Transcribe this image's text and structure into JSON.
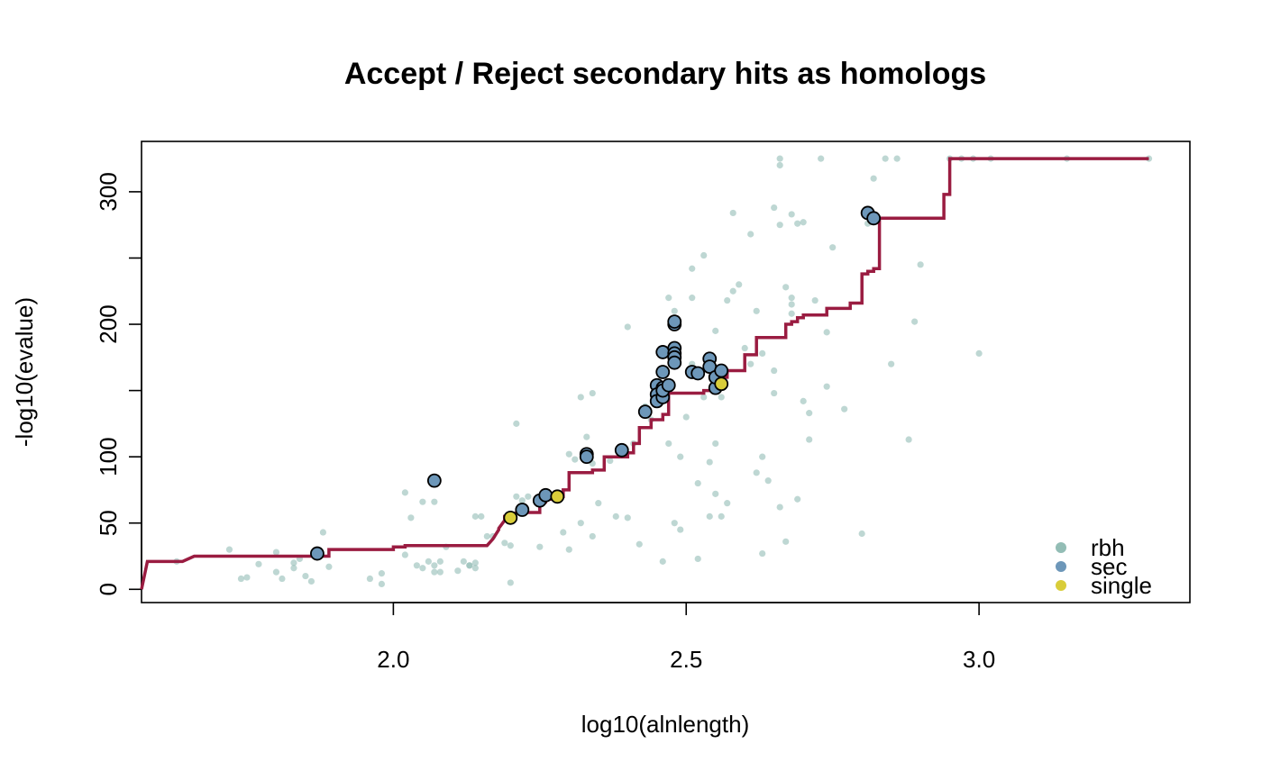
{
  "chart_data": {
    "type": "scatter",
    "title": "Accept / Reject secondary hits as homologs",
    "xlabel": "log10(alnlength)",
    "ylabel": "-log10(evalue)",
    "xlim": [
      1.57,
      3.36
    ],
    "ylim": [
      -10,
      338
    ],
    "xticks": [
      2.0,
      2.5,
      3.0
    ],
    "xtick_labels": [
      "2.0",
      "2.5",
      "3.0"
    ],
    "yticks": [
      0,
      50,
      100,
      150,
      200,
      250,
      300
    ],
    "ytick_labels": [
      "0",
      "50",
      "100",
      "",
      "200",
      "",
      "300"
    ],
    "grid": false,
    "legend_position": "bottom-right",
    "colors": {
      "rbh": "#93bdb5",
      "sec": "#6d97b9",
      "single": "#d9cd3a",
      "threshold": "#9a1c41"
    },
    "series": [
      {
        "name": "rbh",
        "points": [
          [
            1.63,
            21
          ],
          [
            1.72,
            30
          ],
          [
            1.74,
            8
          ],
          [
            1.75,
            9
          ],
          [
            1.77,
            19
          ],
          [
            1.8,
            28
          ],
          [
            1.8,
            13
          ],
          [
            1.81,
            8
          ],
          [
            1.83,
            16
          ],
          [
            1.83,
            20
          ],
          [
            1.84,
            23
          ],
          [
            1.85,
            10
          ],
          [
            1.86,
            6
          ],
          [
            1.88,
            43
          ],
          [
            1.89,
            17
          ],
          [
            1.96,
            8
          ],
          [
            1.98,
            12
          ],
          [
            1.98,
            4
          ],
          [
            2.02,
            26
          ],
          [
            2.02,
            73
          ],
          [
            2.03,
            54
          ],
          [
            2.04,
            18
          ],
          [
            2.05,
            66
          ],
          [
            2.05,
            16
          ],
          [
            2.06,
            21
          ],
          [
            2.07,
            18
          ],
          [
            2.07,
            13
          ],
          [
            2.08,
            21
          ],
          [
            2.08,
            13
          ],
          [
            2.07,
            66
          ],
          [
            2.09,
            32
          ],
          [
            2.11,
            14
          ],
          [
            2.12,
            21
          ],
          [
            2.13,
            18
          ],
          [
            2.13,
            18
          ],
          [
            2.14,
            16
          ],
          [
            2.14,
            55
          ],
          [
            2.14,
            20
          ],
          [
            2.15,
            55
          ],
          [
            2.16,
            40
          ],
          [
            2.17,
            40
          ],
          [
            2.19,
            35
          ],
          [
            2.2,
            33
          ],
          [
            2.21,
            70
          ],
          [
            2.2,
            5
          ],
          [
            2.21,
            125
          ],
          [
            2.22,
            67
          ],
          [
            2.23,
            70
          ],
          [
            2.25,
            32
          ],
          [
            2.26,
            68
          ],
          [
            2.28,
            70
          ],
          [
            2.29,
            43
          ],
          [
            2.3,
            30
          ],
          [
            2.3,
            102
          ],
          [
            2.31,
            98
          ],
          [
            2.32,
            145
          ],
          [
            2.32,
            50
          ],
          [
            2.33,
            115
          ],
          [
            2.34,
            148
          ],
          [
            2.34,
            95
          ],
          [
            2.34,
            40
          ],
          [
            2.35,
            65
          ],
          [
            2.37,
            97
          ],
          [
            2.38,
            55
          ],
          [
            2.39,
            101
          ],
          [
            2.4,
            198
          ],
          [
            2.4,
            54
          ],
          [
            2.41,
            110
          ],
          [
            2.42,
            34
          ],
          [
            2.43,
            138
          ],
          [
            2.44,
            128
          ],
          [
            2.45,
            140
          ],
          [
            2.46,
            21
          ],
          [
            2.47,
            220
          ],
          [
            2.47,
            110
          ],
          [
            2.48,
            210
          ],
          [
            2.48,
            50
          ],
          [
            2.49,
            45
          ],
          [
            2.49,
            100
          ],
          [
            2.5,
            130
          ],
          [
            2.51,
            170
          ],
          [
            2.51,
            220
          ],
          [
            2.51,
            242
          ],
          [
            2.52,
            23
          ],
          [
            2.52,
            80
          ],
          [
            2.53,
            145
          ],
          [
            2.53,
            252
          ],
          [
            2.54,
            55
          ],
          [
            2.54,
            96
          ],
          [
            2.55,
            195
          ],
          [
            2.55,
            72
          ],
          [
            2.55,
            110
          ],
          [
            2.56,
            145
          ],
          [
            2.56,
            55
          ],
          [
            2.57,
            218
          ],
          [
            2.57,
            65
          ],
          [
            2.58,
            225
          ],
          [
            2.58,
            284
          ],
          [
            2.59,
            230
          ],
          [
            2.6,
            182
          ],
          [
            2.61,
            268
          ],
          [
            2.61,
            170
          ],
          [
            2.62,
            210
          ],
          [
            2.62,
            88
          ],
          [
            2.63,
            100
          ],
          [
            2.63,
            178
          ],
          [
            2.63,
            27
          ],
          [
            2.64,
            82
          ],
          [
            2.65,
            148
          ],
          [
            2.65,
            165
          ],
          [
            2.65,
            288
          ],
          [
            2.66,
            325
          ],
          [
            2.66,
            320
          ],
          [
            2.66,
            275
          ],
          [
            2.66,
            62
          ],
          [
            2.67,
            36
          ],
          [
            2.67,
            228
          ],
          [
            2.68,
            283
          ],
          [
            2.68,
            220
          ],
          [
            2.68,
            215
          ],
          [
            2.68,
            208
          ],
          [
            2.69,
            68
          ],
          [
            2.69,
            276
          ],
          [
            2.7,
            277
          ],
          [
            2.7,
            142
          ],
          [
            2.71,
            133
          ],
          [
            2.71,
            113
          ],
          [
            2.72,
            218
          ],
          [
            2.73,
            325
          ],
          [
            2.74,
            153
          ],
          [
            2.74,
            194
          ],
          [
            2.75,
            258
          ],
          [
            2.77,
            136
          ],
          [
            2.8,
            42
          ],
          [
            2.81,
            276
          ],
          [
            2.82,
            310
          ],
          [
            2.84,
            325
          ],
          [
            2.85,
            170
          ],
          [
            2.86,
            325
          ],
          [
            2.88,
            113
          ],
          [
            2.89,
            202
          ],
          [
            2.9,
            245
          ],
          [
            2.95,
            325
          ],
          [
            2.97,
            325
          ],
          [
            2.99,
            325
          ],
          [
            3.0,
            178
          ],
          [
            3.02,
            325
          ],
          [
            3.15,
            325
          ],
          [
            3.29,
            325
          ]
        ]
      },
      {
        "name": "sec",
        "points": [
          [
            1.87,
            27
          ],
          [
            2.07,
            82
          ],
          [
            2.22,
            60
          ],
          [
            2.25,
            67
          ],
          [
            2.26,
            71
          ],
          [
            2.33,
            102
          ],
          [
            2.33,
            100
          ],
          [
            2.39,
            105
          ],
          [
            2.43,
            134
          ],
          [
            2.45,
            154
          ],
          [
            2.45,
            147
          ],
          [
            2.45,
            142
          ],
          [
            2.46,
            145
          ],
          [
            2.46,
            152
          ],
          [
            2.46,
            150
          ],
          [
            2.46,
            164
          ],
          [
            2.46,
            179
          ],
          [
            2.47,
            154
          ],
          [
            2.48,
            200
          ],
          [
            2.48,
            202
          ],
          [
            2.48,
            182
          ],
          [
            2.48,
            178
          ],
          [
            2.48,
            175
          ],
          [
            2.48,
            171
          ],
          [
            2.51,
            164
          ],
          [
            2.52,
            163
          ],
          [
            2.54,
            174
          ],
          [
            2.54,
            168
          ],
          [
            2.55,
            152
          ],
          [
            2.55,
            160
          ],
          [
            2.56,
            165
          ],
          [
            2.81,
            284
          ],
          [
            2.82,
            280
          ]
        ]
      },
      {
        "name": "single",
        "points": [
          [
            2.2,
            54
          ],
          [
            2.28,
            70
          ],
          [
            2.56,
            155
          ]
        ]
      },
      {
        "name": "threshold",
        "line": [
          [
            1.57,
            0
          ],
          [
            1.58,
            21
          ],
          [
            1.64,
            21
          ],
          [
            1.66,
            25
          ],
          [
            1.89,
            25
          ],
          [
            1.89,
            30
          ],
          [
            2.0,
            30
          ],
          [
            2.0,
            32
          ],
          [
            2.02,
            32
          ],
          [
            2.02,
            33
          ],
          [
            2.16,
            33
          ],
          [
            2.17,
            38
          ],
          [
            2.18,
            45
          ],
          [
            2.18,
            46
          ],
          [
            2.19,
            52
          ],
          [
            2.19,
            55
          ],
          [
            2.2,
            55
          ],
          [
            2.21,
            58
          ],
          [
            2.25,
            58
          ],
          [
            2.25,
            66
          ],
          [
            2.26,
            66
          ],
          [
            2.26,
            68
          ],
          [
            2.28,
            68
          ],
          [
            2.28,
            70
          ],
          [
            2.29,
            70
          ],
          [
            2.29,
            75
          ],
          [
            2.3,
            75
          ],
          [
            2.3,
            88
          ],
          [
            2.34,
            88
          ],
          [
            2.34,
            90
          ],
          [
            2.36,
            90
          ],
          [
            2.36,
            100
          ],
          [
            2.4,
            100
          ],
          [
            2.4,
            103
          ],
          [
            2.41,
            103
          ],
          [
            2.41,
            110
          ],
          [
            2.42,
            110
          ],
          [
            2.42,
            122
          ],
          [
            2.44,
            122
          ],
          [
            2.44,
            128
          ],
          [
            2.46,
            128
          ],
          [
            2.46,
            132
          ],
          [
            2.47,
            132
          ],
          [
            2.47,
            148
          ],
          [
            2.53,
            148
          ],
          [
            2.53,
            150
          ],
          [
            2.55,
            150
          ],
          [
            2.55,
            155
          ],
          [
            2.56,
            155
          ],
          [
            2.56,
            160
          ],
          [
            2.57,
            160
          ],
          [
            2.57,
            165
          ],
          [
            2.6,
            165
          ],
          [
            2.6,
            177
          ],
          [
            2.62,
            177
          ],
          [
            2.62,
            190
          ],
          [
            2.67,
            190
          ],
          [
            2.67,
            200
          ],
          [
            2.68,
            200
          ],
          [
            2.68,
            202
          ],
          [
            2.69,
            202
          ],
          [
            2.69,
            205
          ],
          [
            2.7,
            205
          ],
          [
            2.7,
            207
          ],
          [
            2.74,
            207
          ],
          [
            2.74,
            212
          ],
          [
            2.78,
            212
          ],
          [
            2.78,
            216
          ],
          [
            2.8,
            216
          ],
          [
            2.8,
            238
          ],
          [
            2.81,
            238
          ],
          [
            2.81,
            240
          ],
          [
            2.82,
            240
          ],
          [
            2.82,
            242
          ],
          [
            2.83,
            242
          ],
          [
            2.83,
            280
          ],
          [
            2.94,
            280
          ],
          [
            2.94,
            298
          ],
          [
            2.95,
            298
          ],
          [
            2.95,
            325
          ],
          [
            3.29,
            325
          ]
        ]
      }
    ],
    "legend": [
      {
        "label": "rbh",
        "key": "rbh"
      },
      {
        "label": "sec",
        "key": "sec"
      },
      {
        "label": "single",
        "key": "single"
      }
    ]
  }
}
